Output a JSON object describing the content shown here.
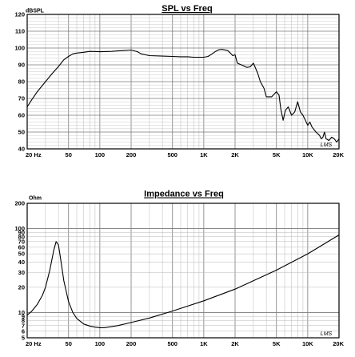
{
  "chart_data": [
    {
      "type": "line",
      "title": "SPL vs Freq",
      "ylabel": "dBSPL",
      "xlabel": "",
      "x_scale": "log",
      "xlim": [
        20,
        20000
      ],
      "ylim": [
        40,
        120
      ],
      "grid": true,
      "watermark": "LMS",
      "x_tick_labels": [
        {
          "v": 20,
          "t": "20 Hz"
        },
        {
          "v": 50,
          "t": "50"
        },
        {
          "v": 100,
          "t": "100"
        },
        {
          "v": 200,
          "t": "200"
        },
        {
          "v": 500,
          "t": "500"
        },
        {
          "v": 1000,
          "t": "1K"
        },
        {
          "v": 2000,
          "t": "2K"
        },
        {
          "v": 5000,
          "t": "5K"
        },
        {
          "v": 10000,
          "t": "10K"
        },
        {
          "v": 20000,
          "t": "20K"
        }
      ],
      "y_tick_labels": [
        {
          "v": 120,
          "t": "120"
        },
        {
          "v": 110,
          "t": "110"
        },
        {
          "v": 100,
          "t": "100"
        },
        {
          "v": 90,
          "t": "90"
        },
        {
          "v": 80,
          "t": "80"
        },
        {
          "v": 70,
          "t": "70"
        },
        {
          "v": 60,
          "t": "60"
        },
        {
          "v": 50,
          "t": "50"
        },
        {
          "v": 40,
          "t": "40"
        }
      ],
      "series": [
        {
          "x": [
            20,
            22,
            25,
            30,
            35,
            40,
            45,
            50,
            55,
            60,
            70,
            80,
            100,
            130,
            150,
            170,
            200,
            230,
            250,
            300,
            400,
            500,
            600,
            700,
            800,
            1000,
            1100,
            1200,
            1300,
            1400,
            1500,
            1700,
            1800,
            1900,
            2000,
            2100,
            2300,
            2600,
            2800,
            3000,
            3300,
            3500,
            3800,
            4000,
            4500,
            5000,
            5300,
            5500,
            5800,
            6100,
            6500,
            7000,
            7500,
            8000,
            8500,
            9000,
            9500,
            10000,
            10500,
            11000,
            12000,
            13000,
            13500,
            14000,
            14500,
            15000,
            16000,
            17000,
            18000,
            19000,
            20000
          ],
          "y": [
            65,
            69,
            74,
            80,
            85,
            89,
            93,
            95,
            96.5,
            97,
            97.5,
            98,
            97.8,
            98,
            98.3,
            98.5,
            98.8,
            97.8,
            96.5,
            95.5,
            95.2,
            95,
            94.8,
            94.8,
            94.5,
            94.5,
            95,
            96.5,
            98,
            99,
            99.2,
            98.5,
            97,
            95.5,
            96,
            91,
            90,
            88.5,
            88.8,
            91,
            85,
            80,
            76,
            71,
            71,
            74,
            72,
            64,
            57,
            63,
            65,
            60,
            62,
            68,
            62,
            60,
            57,
            54,
            56,
            53,
            50,
            48,
            46,
            47,
            50,
            46,
            45,
            47,
            46,
            44,
            46
          ]
        }
      ]
    },
    {
      "type": "line",
      "title": "Impedance vs Freq",
      "ylabel": "Ohm",
      "xlabel": "",
      "x_scale": "log",
      "y_scale": "log",
      "xlim": [
        20,
        20000
      ],
      "ylim": [
        5,
        200
      ],
      "grid": true,
      "watermark": "LMS",
      "x_tick_labels": [
        {
          "v": 20,
          "t": "20 Hz"
        },
        {
          "v": 50,
          "t": "50"
        },
        {
          "v": 100,
          "t": "100"
        },
        {
          "v": 200,
          "t": "200"
        },
        {
          "v": 500,
          "t": "500"
        },
        {
          "v": 1000,
          "t": "1K"
        },
        {
          "v": 2000,
          "t": "2K"
        },
        {
          "v": 5000,
          "t": "5K"
        },
        {
          "v": 10000,
          "t": "10K"
        },
        {
          "v": 20000,
          "t": "20K"
        }
      ],
      "y_tick_labels": [
        {
          "v": 200,
          "t": "200"
        },
        {
          "v": 100,
          "t": "100"
        },
        {
          "v": 90,
          "t": "90"
        },
        {
          "v": 80,
          "t": "80"
        },
        {
          "v": 70,
          "t": "70"
        },
        {
          "v": 60,
          "t": "60"
        },
        {
          "v": 50,
          "t": "50"
        },
        {
          "v": 40,
          "t": "40"
        },
        {
          "v": 30,
          "t": "30"
        },
        {
          "v": 20,
          "t": "20"
        },
        {
          "v": 10,
          "t": "10"
        },
        {
          "v": 9,
          "t": "9"
        },
        {
          "v": 8,
          "t": "8"
        },
        {
          "v": 7,
          "t": "7"
        },
        {
          "v": 6,
          "t": "6"
        },
        {
          "v": 5,
          "t": "5"
        }
      ],
      "series": [
        {
          "x": [
            20,
            22,
            25,
            28,
            30,
            33,
            36,
            38,
            40,
            42,
            45,
            50,
            55,
            60,
            70,
            80,
            90,
            100,
            110,
            120,
            150,
            200,
            300,
            500,
            1000,
            2000,
            5000,
            10000,
            20000
          ],
          "y": [
            9.3,
            10.3,
            12.5,
            16,
            20,
            32,
            55,
            70,
            64,
            43,
            24,
            13.5,
            10,
            8.5,
            7.3,
            6.9,
            6.7,
            6.6,
            6.6,
            6.7,
            7,
            7.6,
            8.6,
            10.4,
            13.8,
            19,
            32,
            50,
            84
          ]
        }
      ]
    }
  ]
}
